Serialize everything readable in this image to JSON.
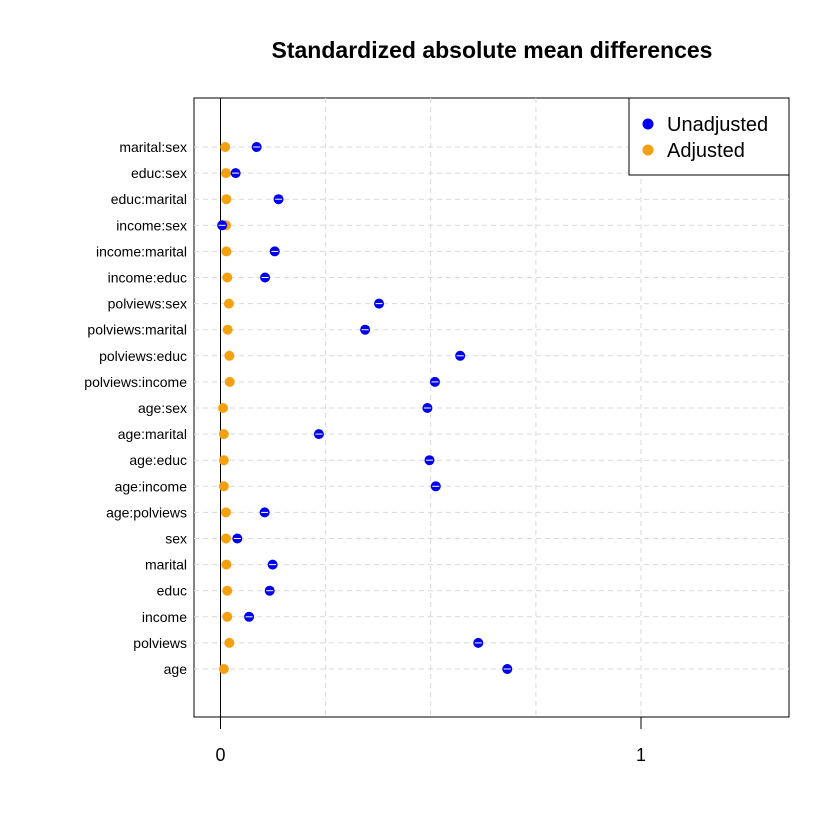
{
  "chart_data": {
    "type": "scatter",
    "title": "Standardized absolute mean differences",
    "xlabel": "",
    "ylabel": "",
    "xlim": [
      -0.06,
      1.35
    ],
    "x_ticks": [
      "0",
      "1"
    ],
    "x_tick_values": [
      0,
      1
    ],
    "x_grid_values": [
      0.25,
      0.5,
      0.75,
      1
    ],
    "grid": true,
    "legend_position": "top-right",
    "categories": [
      "marital:sex",
      "educ:sex",
      "educ:marital",
      "income:sex",
      "income:marital",
      "income:educ",
      "polviews:sex",
      "polviews:marital",
      "polviews:educ",
      "polviews:income",
      "age:sex",
      "age:marital",
      "age:educ",
      "age:income",
      "age:polviews",
      "sex",
      "marital",
      "educ",
      "income",
      "polviews",
      "age"
    ],
    "series": [
      {
        "name": "Unadjusted",
        "color": "#0000ee",
        "values": [
          0.086,
          0.036,
          0.138,
          0.004,
          0.129,
          0.106,
          0.377,
          0.344,
          0.57,
          0.51,
          0.492,
          0.234,
          0.497,
          0.512,
          0.105,
          0.04,
          0.124,
          0.117,
          0.068,
          0.613,
          0.682
        ]
      },
      {
        "name": "Adjusted",
        "color": "#f5a00f",
        "values": [
          0.011,
          0.013,
          0.014,
          0.013,
          0.014,
          0.016,
          0.02,
          0.017,
          0.021,
          0.022,
          0.006,
          0.008,
          0.008,
          0.008,
          0.013,
          0.013,
          0.014,
          0.016,
          0.016,
          0.021,
          0.008
        ]
      }
    ]
  }
}
